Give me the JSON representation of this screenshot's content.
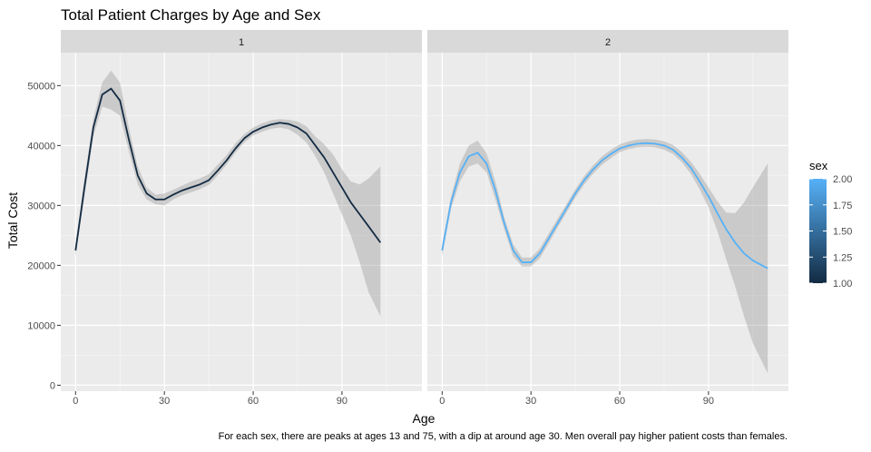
{
  "chart_data": {
    "type": "line",
    "title": "Total Patient Charges by Age and Sex",
    "xlabel": "Age",
    "ylabel": "Total Cost",
    "caption": "For each sex, there are peaks at ages 13 and 75, with a dip at around age 30. Men overall pay higher patient costs than females.",
    "x_ticks": [
      "0",
      "30",
      "60",
      "90"
    ],
    "x_tick_values": [
      0,
      30,
      60,
      90
    ],
    "y_ticks": [
      "0",
      "10000",
      "20000",
      "30000",
      "40000",
      "50000"
    ],
    "y_tick_values": [
      0,
      10000,
      20000,
      30000,
      40000,
      50000
    ],
    "xlim": [
      -5,
      117
    ],
    "ylim": [
      -1000,
      55500
    ],
    "grid": true,
    "legend": {
      "title": "sex",
      "position": "right",
      "labels": [
        "2.00",
        "1.75",
        "1.50",
        "1.25",
        "1.00"
      ],
      "values": [
        2.0,
        1.75,
        1.5,
        1.25,
        1.0
      ],
      "color_low": "#132B43",
      "color_high": "#56B1F7"
    },
    "panels": [
      {
        "strip": "1",
        "sex": 1,
        "color": "#132B43",
        "x": [
          0,
          3,
          6,
          9,
          12,
          15,
          18,
          21,
          24,
          27,
          30,
          33,
          36,
          39,
          42,
          45,
          48,
          51,
          54,
          57,
          60,
          63,
          66,
          69,
          72,
          75,
          78,
          81,
          84,
          87,
          90,
          93,
          96,
          99,
          103
        ],
        "y": [
          22500,
          33000,
          43000,
          48500,
          49500,
          47500,
          41000,
          35000,
          32000,
          31000,
          31000,
          31800,
          32500,
          33000,
          33500,
          34200,
          35800,
          37500,
          39500,
          41200,
          42300,
          43000,
          43500,
          43800,
          43600,
          43000,
          42000,
          40000,
          38000,
          35500,
          33000,
          30500,
          28500,
          26500,
          23800
        ],
        "ci_lower": [
          21500,
          31500,
          41500,
          46500,
          46000,
          45000,
          39000,
          33500,
          31000,
          30200,
          30000,
          31000,
          31700,
          32200,
          32700,
          33400,
          35000,
          36800,
          38800,
          40500,
          41700,
          42300,
          42800,
          43000,
          42700,
          41800,
          40500,
          38200,
          35500,
          32000,
          28500,
          25000,
          20500,
          15500,
          11500
        ],
        "ci_upper": [
          23500,
          34500,
          44500,
          50500,
          52500,
          50500,
          43000,
          36500,
          33000,
          31800,
          32000,
          32600,
          33300,
          34000,
          34500,
          35200,
          36800,
          38400,
          40400,
          41900,
          43000,
          43700,
          44200,
          44400,
          44300,
          44000,
          43200,
          41500,
          40200,
          38500,
          36000,
          34000,
          33500,
          34500,
          36500
        ]
      },
      {
        "strip": "2",
        "sex": 2,
        "color": "#56B1F7",
        "x": [
          0,
          3,
          6,
          9,
          12,
          15,
          18,
          21,
          24,
          27,
          30,
          33,
          36,
          39,
          42,
          45,
          48,
          51,
          54,
          57,
          60,
          63,
          66,
          69,
          72,
          75,
          78,
          81,
          84,
          87,
          90,
          93,
          96,
          99,
          102,
          105,
          110
        ],
        "y": [
          22500,
          30500,
          35500,
          38200,
          38800,
          37000,
          32500,
          27000,
          22500,
          20500,
          20500,
          22000,
          24500,
          27000,
          29500,
          32000,
          34200,
          36000,
          37500,
          38600,
          39500,
          40000,
          40300,
          40400,
          40300,
          40000,
          39300,
          38000,
          36300,
          34000,
          31500,
          28700,
          26000,
          23800,
          22000,
          20800,
          19500
        ],
        "ci_lower": [
          21500,
          29500,
          34000,
          36500,
          37000,
          35500,
          31000,
          26000,
          21500,
          19800,
          19800,
          21200,
          23700,
          26300,
          28800,
          31300,
          33500,
          35300,
          36800,
          37900,
          38900,
          39400,
          39700,
          39800,
          39700,
          39300,
          38600,
          37200,
          35300,
          32700,
          29700,
          25700,
          21000,
          16500,
          11500,
          7000,
          2000
        ],
        "ci_upper": [
          23500,
          31500,
          37000,
          40000,
          40800,
          38700,
          34000,
          28000,
          23500,
          21300,
          21300,
          22800,
          25300,
          27800,
          30200,
          32700,
          34900,
          36700,
          38200,
          39300,
          40200,
          40700,
          41000,
          41100,
          41000,
          40700,
          40100,
          38900,
          37300,
          35300,
          33000,
          30700,
          28800,
          28700,
          30500,
          33000,
          37000
        ]
      }
    ]
  }
}
